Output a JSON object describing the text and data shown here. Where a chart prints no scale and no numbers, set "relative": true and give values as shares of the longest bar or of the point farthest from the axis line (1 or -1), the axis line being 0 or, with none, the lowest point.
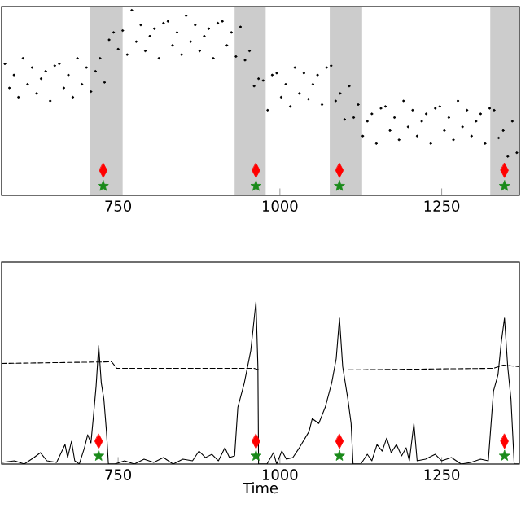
{
  "chart_data": [
    {
      "type": "scatter",
      "relative": true,
      "xlim": [
        570,
        1370
      ],
      "xticks": [
        750,
        1000,
        1250
      ],
      "tick_labels": "x",
      "bands": [
        {
          "axis": "x",
          "from": 707,
          "to": 757,
          "color": "#cccccc"
        },
        {
          "axis": "x",
          "from": 930,
          "to": 978,
          "color": "#cccccc"
        },
        {
          "axis": "x",
          "from": 1077,
          "to": 1127,
          "color": "#cccccc"
        },
        {
          "axis": "x",
          "from": 1325,
          "to": 1370,
          "color": "#cccccc"
        }
      ],
      "series": [
        {
          "color": "#000000",
          "marker": "circle",
          "x": [
            575,
            582,
            589,
            596,
            603,
            610,
            617,
            624,
            631,
            638,
            645,
            652,
            659,
            666,
            673,
            680,
            687,
            694,
            701,
            708,
            715,
            722,
            729,
            736,
            743,
            750,
            757,
            764,
            771,
            778,
            785,
            792,
            799,
            806,
            813,
            820,
            827,
            834,
            841,
            848,
            855,
            862,
            869,
            876,
            883,
            890,
            897,
            904,
            911,
            918,
            925,
            932,
            939,
            946,
            953,
            960,
            967,
            974,
            981,
            988,
            995,
            1002,
            1009,
            1016,
            1023,
            1030,
            1037,
            1044,
            1051,
            1058,
            1065,
            1072,
            1079,
            1086,
            1093,
            1100,
            1107,
            1114,
            1121,
            1128,
            1135,
            1142,
            1149,
            1156,
            1163,
            1170,
            1177,
            1184,
            1191,
            1198,
            1205,
            1212,
            1219,
            1226,
            1233,
            1240,
            1247,
            1254,
            1261,
            1268,
            1275,
            1282,
            1289,
            1296,
            1303,
            1310,
            1317,
            1324,
            1331,
            1338,
            1345,
            1352,
            1359,
            1366
          ],
          "values": [
            0.71,
            0.58,
            0.65,
            0.53,
            0.74,
            0.6,
            0.69,
            0.55,
            0.63,
            0.67,
            0.51,
            0.7,
            0.71,
            0.58,
            0.65,
            0.53,
            0.74,
            0.6,
            0.69,
            0.56,
            0.67,
            0.74,
            0.61,
            0.84,
            0.88,
            0.79,
            0.89,
            0.76,
            1.0,
            0.83,
            0.92,
            0.78,
            0.86,
            0.9,
            0.74,
            0.93,
            0.94,
            0.81,
            0.88,
            0.76,
            0.97,
            0.83,
            0.92,
            0.78,
            0.86,
            0.9,
            0.74,
            0.93,
            0.94,
            0.81,
            0.88,
            0.75,
            0.91,
            0.73,
            0.78,
            0.59,
            0.63,
            0.62,
            0.46,
            0.65,
            0.66,
            0.53,
            0.6,
            0.48,
            0.69,
            0.55,
            0.66,
            0.52,
            0.6,
            0.65,
            0.49,
            0.69,
            0.7,
            0.51,
            0.55,
            0.41,
            0.59,
            0.42,
            0.49,
            0.32,
            0.4,
            0.44,
            0.28,
            0.47,
            0.48,
            0.35,
            0.42,
            0.3,
            0.51,
            0.37,
            0.46,
            0.32,
            0.4,
            0.44,
            0.28,
            0.47,
            0.48,
            0.35,
            0.42,
            0.3,
            0.51,
            0.37,
            0.46,
            0.32,
            0.4,
            0.44,
            0.28,
            0.47,
            0.46,
            0.31,
            0.35,
            0.21,
            0.4,
            0.23
          ]
        },
        {
          "color": "#ff0000",
          "marker": "diamond",
          "x": [
            727,
            963,
            1092,
            1347
          ],
          "values": [
            0.135,
            0.135,
            0.135,
            0.135
          ]
        },
        {
          "color": "#1a8a1a",
          "marker": "star",
          "x": [
            727,
            963,
            1092,
            1347
          ],
          "values": [
            0.05,
            0.05,
            0.05,
            0.05
          ]
        }
      ]
    },
    {
      "type": "line",
      "relative": true,
      "xlabel": "Time",
      "xlim": [
        570,
        1370
      ],
      "xticks": [
        750,
        1000,
        1250
      ],
      "tick_labels": "x",
      "series": [
        {
          "color": "#000000",
          "line_style": "solid",
          "x": [
            570,
            590,
            605,
            620,
            630,
            640,
            655,
            668,
            672,
            678,
            683,
            690,
            698,
            703,
            708,
            712,
            716,
            720,
            724,
            728,
            732,
            735,
            745,
            760,
            775,
            790,
            805,
            820,
            835,
            850,
            865,
            875,
            885,
            895,
            905,
            915,
            922,
            930,
            935,
            945,
            955,
            963,
            966,
            967,
            980,
            990,
            995,
            1003,
            1010,
            1020,
            1030,
            1045,
            1050,
            1060,
            1070,
            1080,
            1087,
            1092,
            1097,
            1105,
            1110,
            1113,
            1125,
            1135,
            1142,
            1150,
            1158,
            1165,
            1172,
            1180,
            1188,
            1195,
            1200,
            1207,
            1212,
            1225,
            1240,
            1250,
            1265,
            1280,
            1295,
            1310,
            1322,
            1330,
            1337,
            1342,
            1347,
            1352,
            1357,
            1362,
            1370
          ],
          "values": [
            0.01,
            0.02,
            0.0,
            0.04,
            0.07,
            0.02,
            0.01,
            0.12,
            0.04,
            0.14,
            0.02,
            0.0,
            0.1,
            0.18,
            0.13,
            0.3,
            0.48,
            0.73,
            0.5,
            0.4,
            0.2,
            0.0,
            0.0,
            0.02,
            0.0,
            0.03,
            0.01,
            0.04,
            0.0,
            0.03,
            0.02,
            0.08,
            0.04,
            0.06,
            0.02,
            0.1,
            0.04,
            0.05,
            0.35,
            0.5,
            0.7,
            1.0,
            0.6,
            0.0,
            0.0,
            0.07,
            0.0,
            0.08,
            0.03,
            0.04,
            0.1,
            0.2,
            0.28,
            0.25,
            0.35,
            0.5,
            0.65,
            0.9,
            0.6,
            0.4,
            0.25,
            0.0,
            0.0,
            0.06,
            0.02,
            0.12,
            0.08,
            0.16,
            0.07,
            0.12,
            0.05,
            0.1,
            0.02,
            0.25,
            0.02,
            0.03,
            0.06,
            0.02,
            0.04,
            0.0,
            0.01,
            0.03,
            0.02,
            0.45,
            0.55,
            0.75,
            0.9,
            0.6,
            0.4,
            0.0,
            0.0
          ]
        },
        {
          "color": "#000000",
          "line_style": "dashed",
          "x": [
            570,
            740,
            748,
            960,
            968,
            1100,
            1330,
            1345,
            1370
          ],
          "values": [
            0.62,
            0.63,
            0.59,
            0.59,
            0.58,
            0.58,
            0.59,
            0.61,
            0.6
          ]
        },
        {
          "type": "scatter",
          "color": "#ff0000",
          "marker": "diamond",
          "x": [
            720,
            963,
            1092,
            1347
          ],
          "values": [
            0.14,
            0.14,
            0.14,
            0.14
          ]
        },
        {
          "type": "scatter",
          "color": "#1a8a1a",
          "marker": "star",
          "x": [
            720,
            963,
            1092,
            1347
          ],
          "values": [
            0.05,
            0.05,
            0.05,
            0.05
          ]
        }
      ]
    }
  ]
}
